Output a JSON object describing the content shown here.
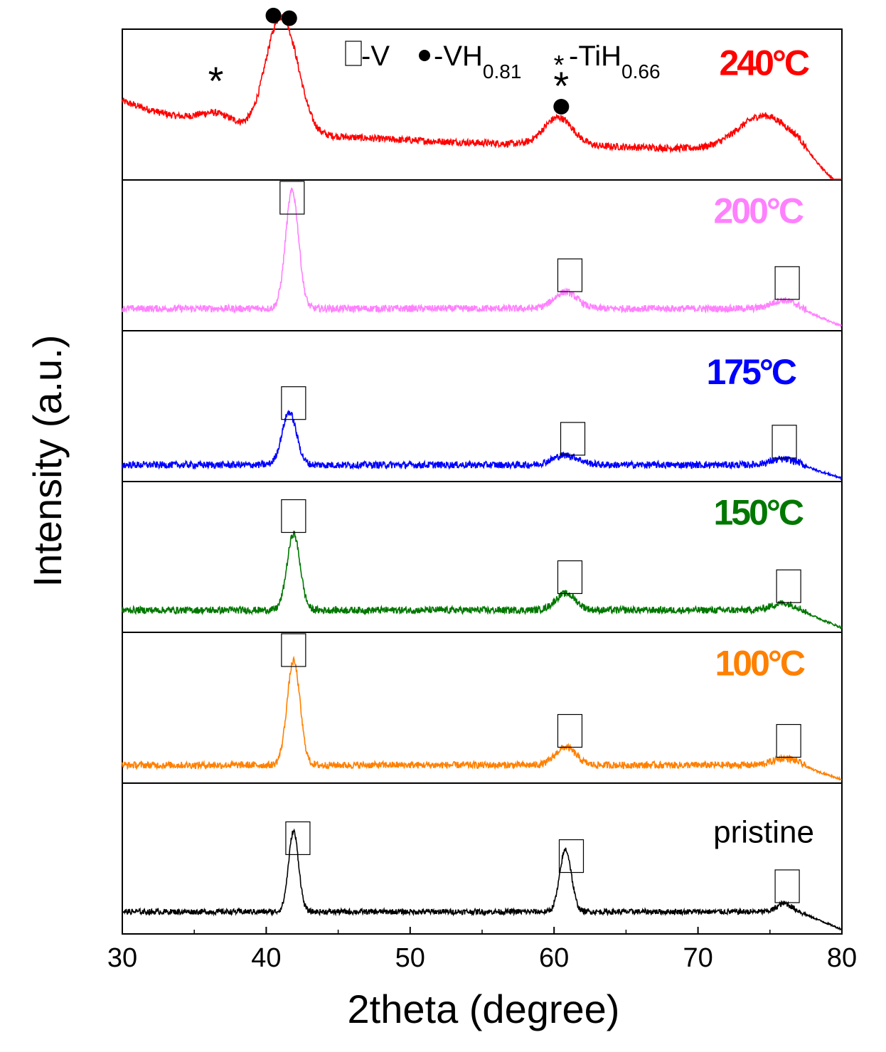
{
  "chart_data": {
    "type": "line",
    "layout": "stacked panels",
    "xlabel": "2theta (degree)",
    "ylabel": "Intensity (a.u.)",
    "xlim": [
      30,
      80
    ],
    "xticks": [
      30,
      40,
      50,
      60,
      70,
      80
    ],
    "legend": {
      "entries": [
        {
          "marker": "open-square",
          "label": "-V"
        },
        {
          "marker": "filled-circle",
          "label": "-VH",
          "subscript": "0.81"
        },
        {
          "marker": "asterisk",
          "label": "-TiH",
          "subscript": "0.66"
        }
      ],
      "placement": "top"
    },
    "series": [
      {
        "name": "240°C",
        "label_text": "240",
        "label_suffix": "°C",
        "color": "#ff0000",
        "baseline": 0.32,
        "noise": 0.05,
        "background_slope": "decreasing",
        "peaks": [
          [
            36.5,
            0.08,
            1.2
          ],
          [
            40.6,
            0.55,
            0.9
          ],
          [
            41.7,
            0.45,
            0.9
          ],
          [
            60.3,
            0.2,
            1.0
          ],
          [
            74.6,
            0.25,
            1.8
          ]
        ],
        "markers": [
          {
            "type": "asterisk",
            "x": 36.5
          },
          {
            "type": "asterisk",
            "x": 41.0
          },
          {
            "type": "circle",
            "x": 40.5
          },
          {
            "type": "circle",
            "x": 41.6
          },
          {
            "type": "asterisk",
            "x": 60.5
          },
          {
            "type": "circle",
            "x": 60.5
          }
        ]
      },
      {
        "name": "200°C",
        "label_text": "200",
        "label_suffix": "°C",
        "color": "#ff80ff",
        "baseline": 0.16,
        "noise": 0.05,
        "peaks": [
          [
            41.8,
            0.85,
            0.45
          ],
          [
            60.8,
            0.12,
            0.8
          ],
          [
            75.9,
            0.06,
            0.8
          ]
        ],
        "markers": [
          {
            "type": "square",
            "x": 41.8
          },
          {
            "type": "square",
            "x": 61.1
          },
          {
            "type": "square",
            "x": 76.2
          }
        ]
      },
      {
        "name": "175°C",
        "label_text": "175",
        "label_suffix": "°C",
        "color": "#0000ff",
        "baseline": 0.12,
        "noise": 0.05,
        "peaks": [
          [
            41.6,
            0.38,
            0.5
          ],
          [
            60.8,
            0.07,
            0.9
          ],
          [
            75.9,
            0.04,
            0.9
          ]
        ],
        "markers": [
          {
            "type": "square",
            "x": 41.9
          },
          {
            "type": "square",
            "x": 61.3
          },
          {
            "type": "square",
            "x": 76.0
          }
        ]
      },
      {
        "name": "150°C",
        "label_text": "150",
        "label_suffix": "°C",
        "color": "#007700",
        "baseline": 0.16,
        "noise": 0.05,
        "peaks": [
          [
            41.9,
            0.55,
            0.45
          ],
          [
            60.8,
            0.12,
            0.7
          ],
          [
            75.9,
            0.05,
            0.8
          ]
        ],
        "markers": [
          {
            "type": "square",
            "x": 41.9
          },
          {
            "type": "square",
            "x": 61.1
          },
          {
            "type": "square",
            "x": 76.3
          }
        ]
      },
      {
        "name": "100°C",
        "label_text": "100",
        "label_suffix": "°C",
        "color": "#ff8000",
        "baseline": 0.13,
        "noise": 0.05,
        "peaks": [
          [
            41.9,
            0.75,
            0.45
          ],
          [
            60.8,
            0.13,
            0.7
          ],
          [
            76.0,
            0.05,
            0.8
          ]
        ],
        "markers": [
          {
            "type": "square",
            "x": 41.9
          },
          {
            "type": "square",
            "x": 61.1
          },
          {
            "type": "square",
            "x": 76.3
          }
        ]
      },
      {
        "name": "pristine",
        "label_text": "pristine",
        "label_suffix": "",
        "color": "#000000",
        "baseline": 0.16,
        "noise": 0.04,
        "peaks": [
          [
            41.9,
            0.58,
            0.35
          ],
          [
            60.8,
            0.45,
            0.4
          ],
          [
            76.0,
            0.06,
            0.5
          ]
        ],
        "markers": [
          {
            "type": "square",
            "x": 42.2
          },
          {
            "type": "square",
            "x": 61.2
          },
          {
            "type": "square",
            "x": 76.2
          }
        ]
      }
    ]
  }
}
